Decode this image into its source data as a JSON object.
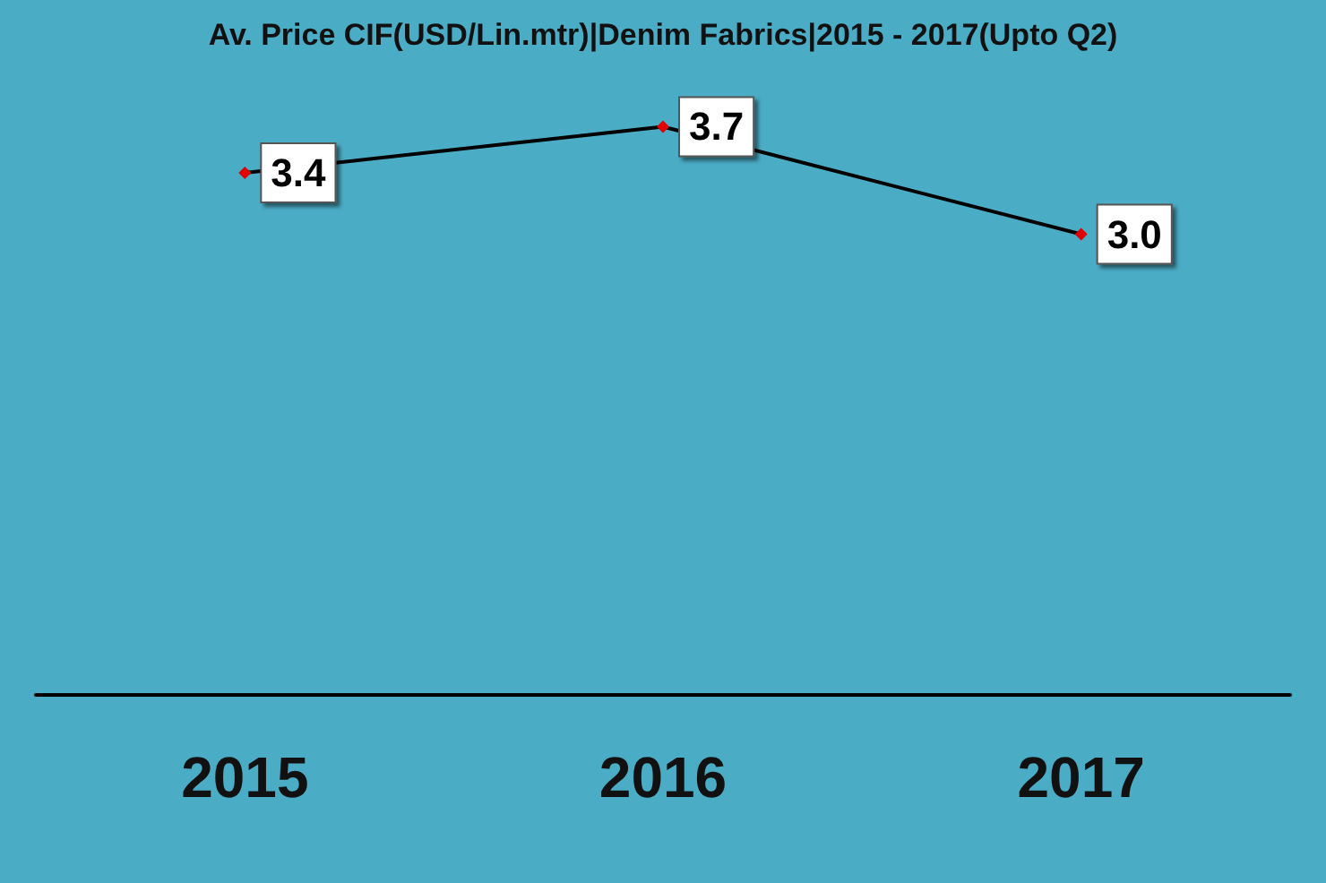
{
  "chart_data": {
    "type": "line",
    "title": "Av. Price CIF(USD/Lin.mtr)|Denim Fabrics|2015 - 2017(Upto Q2)",
    "categories": [
      "2015",
      "2016",
      "2017"
    ],
    "series": [
      {
        "color": "#000000",
        "values": [
          3.4,
          3.7,
          3.0
        ],
        "value_labels": [
          "3.4",
          "3.7",
          "3.0"
        ]
      }
    ],
    "marker": "diamond"
  }
}
